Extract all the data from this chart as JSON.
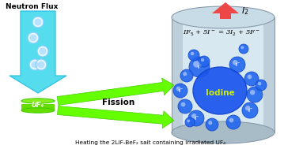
{
  "background_color": "#ffffff",
  "title_text": "Heating the 2LiF-BeF₂ salt containing irradiated UF₄",
  "neutron_flux_label": "Neutron Flux",
  "uf4_label": "UF₄",
  "fission_label": "Fission",
  "iodine_label": "Iodine",
  "i2_label": "I₂",
  "equation": "IF$_5$ + 5I$^-$ = 3I$_2$ + 5F$^-$",
  "cyan_color": "#55ddee",
  "cyan_edge": "#22bbdd",
  "green_color": "#66ff00",
  "green_edge": "#44cc00",
  "red_color": "#ee3333",
  "red_light": "#ffaaaa",
  "uf4_color": "#66dd00",
  "uf4_top_color": "#88ee22",
  "cyl_body": "#d8e8f0",
  "cyl_edge": "#8899aa",
  "cyl_side": "#a8bcc8",
  "cyl_top": "#c8dce8",
  "bubble_fill": "#2266ee",
  "bubble_edge": "#1144cc",
  "blob_fill": "#1a55ee",
  "iodine_color": "#ccee00",
  "neutron_white": "#e8f8ff",
  "neutron_blue": "#88ccff"
}
